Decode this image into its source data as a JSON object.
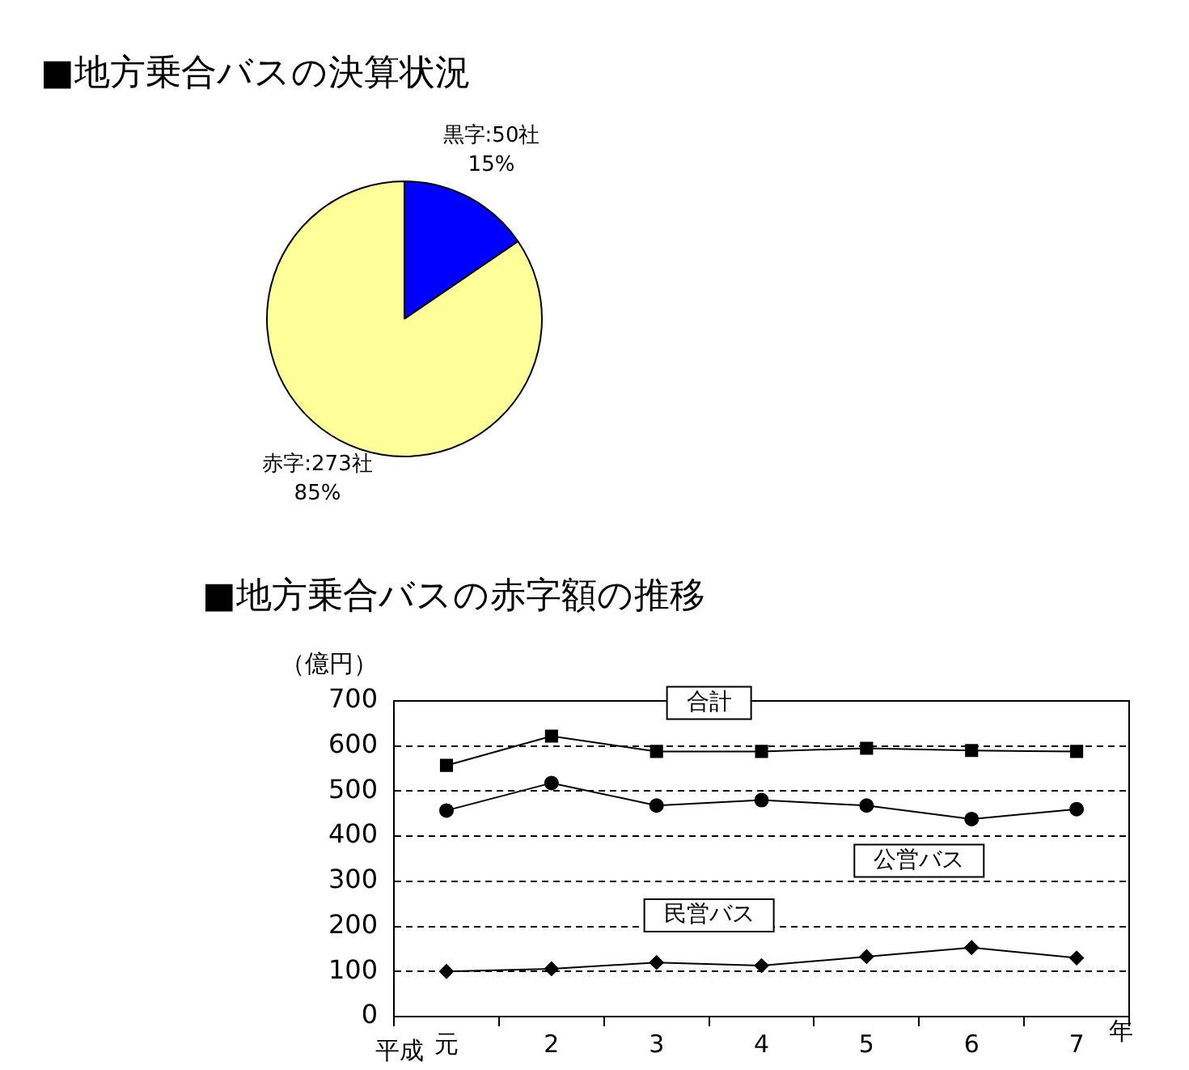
{
  "chart_data": [
    {
      "type": "pie",
      "title": "■地方乗合バスの決算状況",
      "categories": [
        "黒字",
        "赤字"
      ],
      "values": [
        50,
        273
      ],
      "value_labels": [
        "50社",
        "273社"
      ],
      "annotations": [
        "15%",
        "85%"
      ],
      "colors": [
        "#0000ff",
        "#ffff99"
      ],
      "legend": false
    },
    {
      "type": "line",
      "title": "■地方乗合バスの赤字額の推移",
      "ylabel": "（億円）",
      "xlabel": "年",
      "annotations": [
        "平成"
      ],
      "categories": [
        "元",
        "2",
        "3",
        "4",
        "5",
        "6",
        "7"
      ],
      "series": [
        {
          "name": "合計",
          "color": "#000000",
          "marker": "square",
          "values": [
            557,
            622,
            588,
            588,
            595,
            590,
            588
          ]
        },
        {
          "name": "公営バス",
          "color": "#000000",
          "marker": "circle",
          "values": [
            457,
            518,
            468,
            480,
            468,
            438,
            460
          ]
        },
        {
          "name": "民営バス",
          "color": "#000000",
          "marker": "diamond",
          "values": [
            100,
            106,
            120,
            113,
            133,
            153,
            130
          ]
        }
      ],
      "ylim": [
        0,
        700
      ],
      "yticks": [
        0,
        100,
        200,
        300,
        400,
        500,
        600,
        700
      ],
      "grid": "y",
      "line_style": "solid",
      "legend": false
    }
  ]
}
